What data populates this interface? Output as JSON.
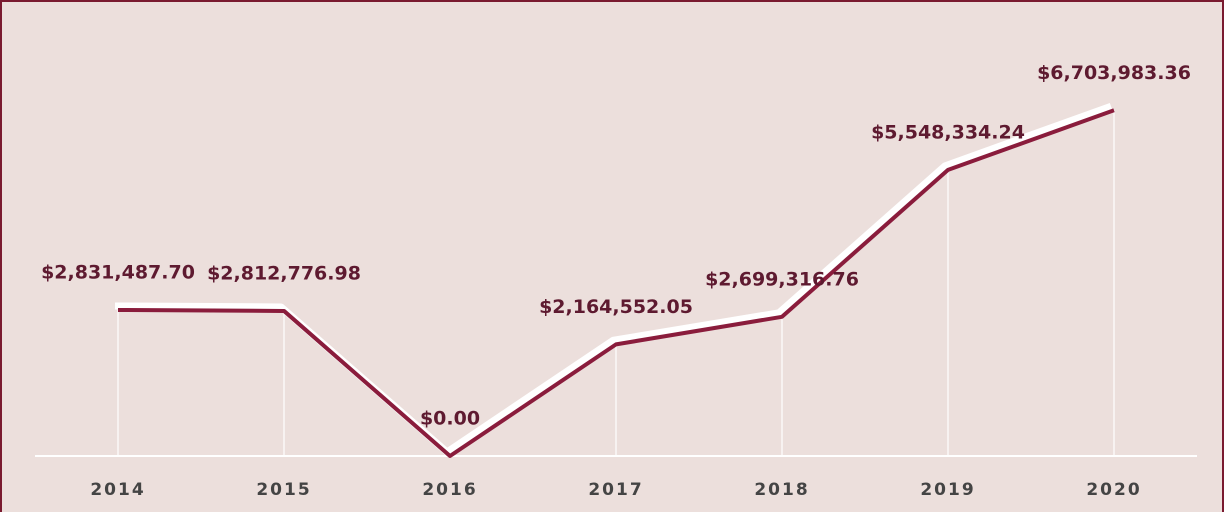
{
  "chart_data": {
    "type": "line",
    "categories": [
      "2014",
      "2015",
      "2016",
      "2017",
      "2018",
      "2019",
      "2020"
    ],
    "values": [
      2831487.7,
      2812776.98,
      0,
      2164552.05,
      2699316.76,
      5548334.24,
      6703983.36
    ],
    "value_labels": [
      "$2,831,487.70",
      "$2,812,776.98",
      "$0.00",
      "$2,164,552.05",
      "$2,699,316.76",
      "$5,548,334.24",
      "$6,703,983.36"
    ],
    "color": "#8a1c3c",
    "ylim": [
      0,
      7000000
    ]
  }
}
